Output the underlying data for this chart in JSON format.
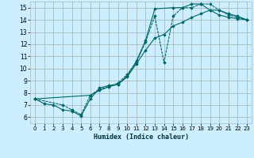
{
  "title": "",
  "xlabel": "Humidex (Indice chaleur)",
  "bg_color": "#cceeff",
  "grid_color": "#aabbbb",
  "line_color": "#006666",
  "xlim": [
    -0.5,
    23.5
  ],
  "ylim": [
    5.5,
    15.5
  ],
  "xticks": [
    0,
    1,
    2,
    3,
    4,
    5,
    6,
    7,
    8,
    9,
    10,
    11,
    12,
    13,
    14,
    15,
    16,
    17,
    18,
    19,
    20,
    21,
    22,
    23
  ],
  "yticks": [
    6,
    7,
    8,
    9,
    10,
    11,
    12,
    13,
    14,
    15
  ],
  "line1_x": [
    0,
    1,
    2,
    3,
    4,
    5,
    6,
    7,
    8,
    9,
    10,
    11,
    12,
    13,
    15,
    16,
    17,
    18,
    19,
    20,
    21,
    22,
    23
  ],
  "line1_y": [
    7.5,
    7.1,
    7.0,
    6.6,
    6.5,
    6.1,
    7.5,
    8.4,
    8.6,
    8.7,
    9.4,
    10.6,
    12.3,
    14.9,
    15.0,
    15.0,
    15.3,
    15.3,
    14.8,
    14.4,
    14.2,
    14.1,
    14.0
  ],
  "line2_x": [
    0,
    3,
    4,
    5,
    6,
    7,
    8,
    9,
    10,
    11,
    12,
    13,
    14,
    15,
    16,
    17,
    18,
    19,
    20,
    21,
    22,
    23
  ],
  "line2_y": [
    7.5,
    7.0,
    6.6,
    6.2,
    7.8,
    8.3,
    8.5,
    8.8,
    9.5,
    10.5,
    12.2,
    14.3,
    10.5,
    14.3,
    15.0,
    15.0,
    15.3,
    15.3,
    14.8,
    14.4,
    14.2,
    14.0
  ],
  "line3_x": [
    0,
    6,
    7,
    8,
    9,
    10,
    11,
    12,
    13,
    14,
    15,
    16,
    17,
    18,
    19,
    20,
    21,
    22,
    23
  ],
  "line3_y": [
    7.5,
    7.8,
    8.2,
    8.5,
    8.7,
    9.3,
    10.4,
    11.5,
    12.5,
    12.8,
    13.5,
    13.8,
    14.2,
    14.5,
    14.8,
    14.8,
    14.5,
    14.3,
    14.0
  ]
}
